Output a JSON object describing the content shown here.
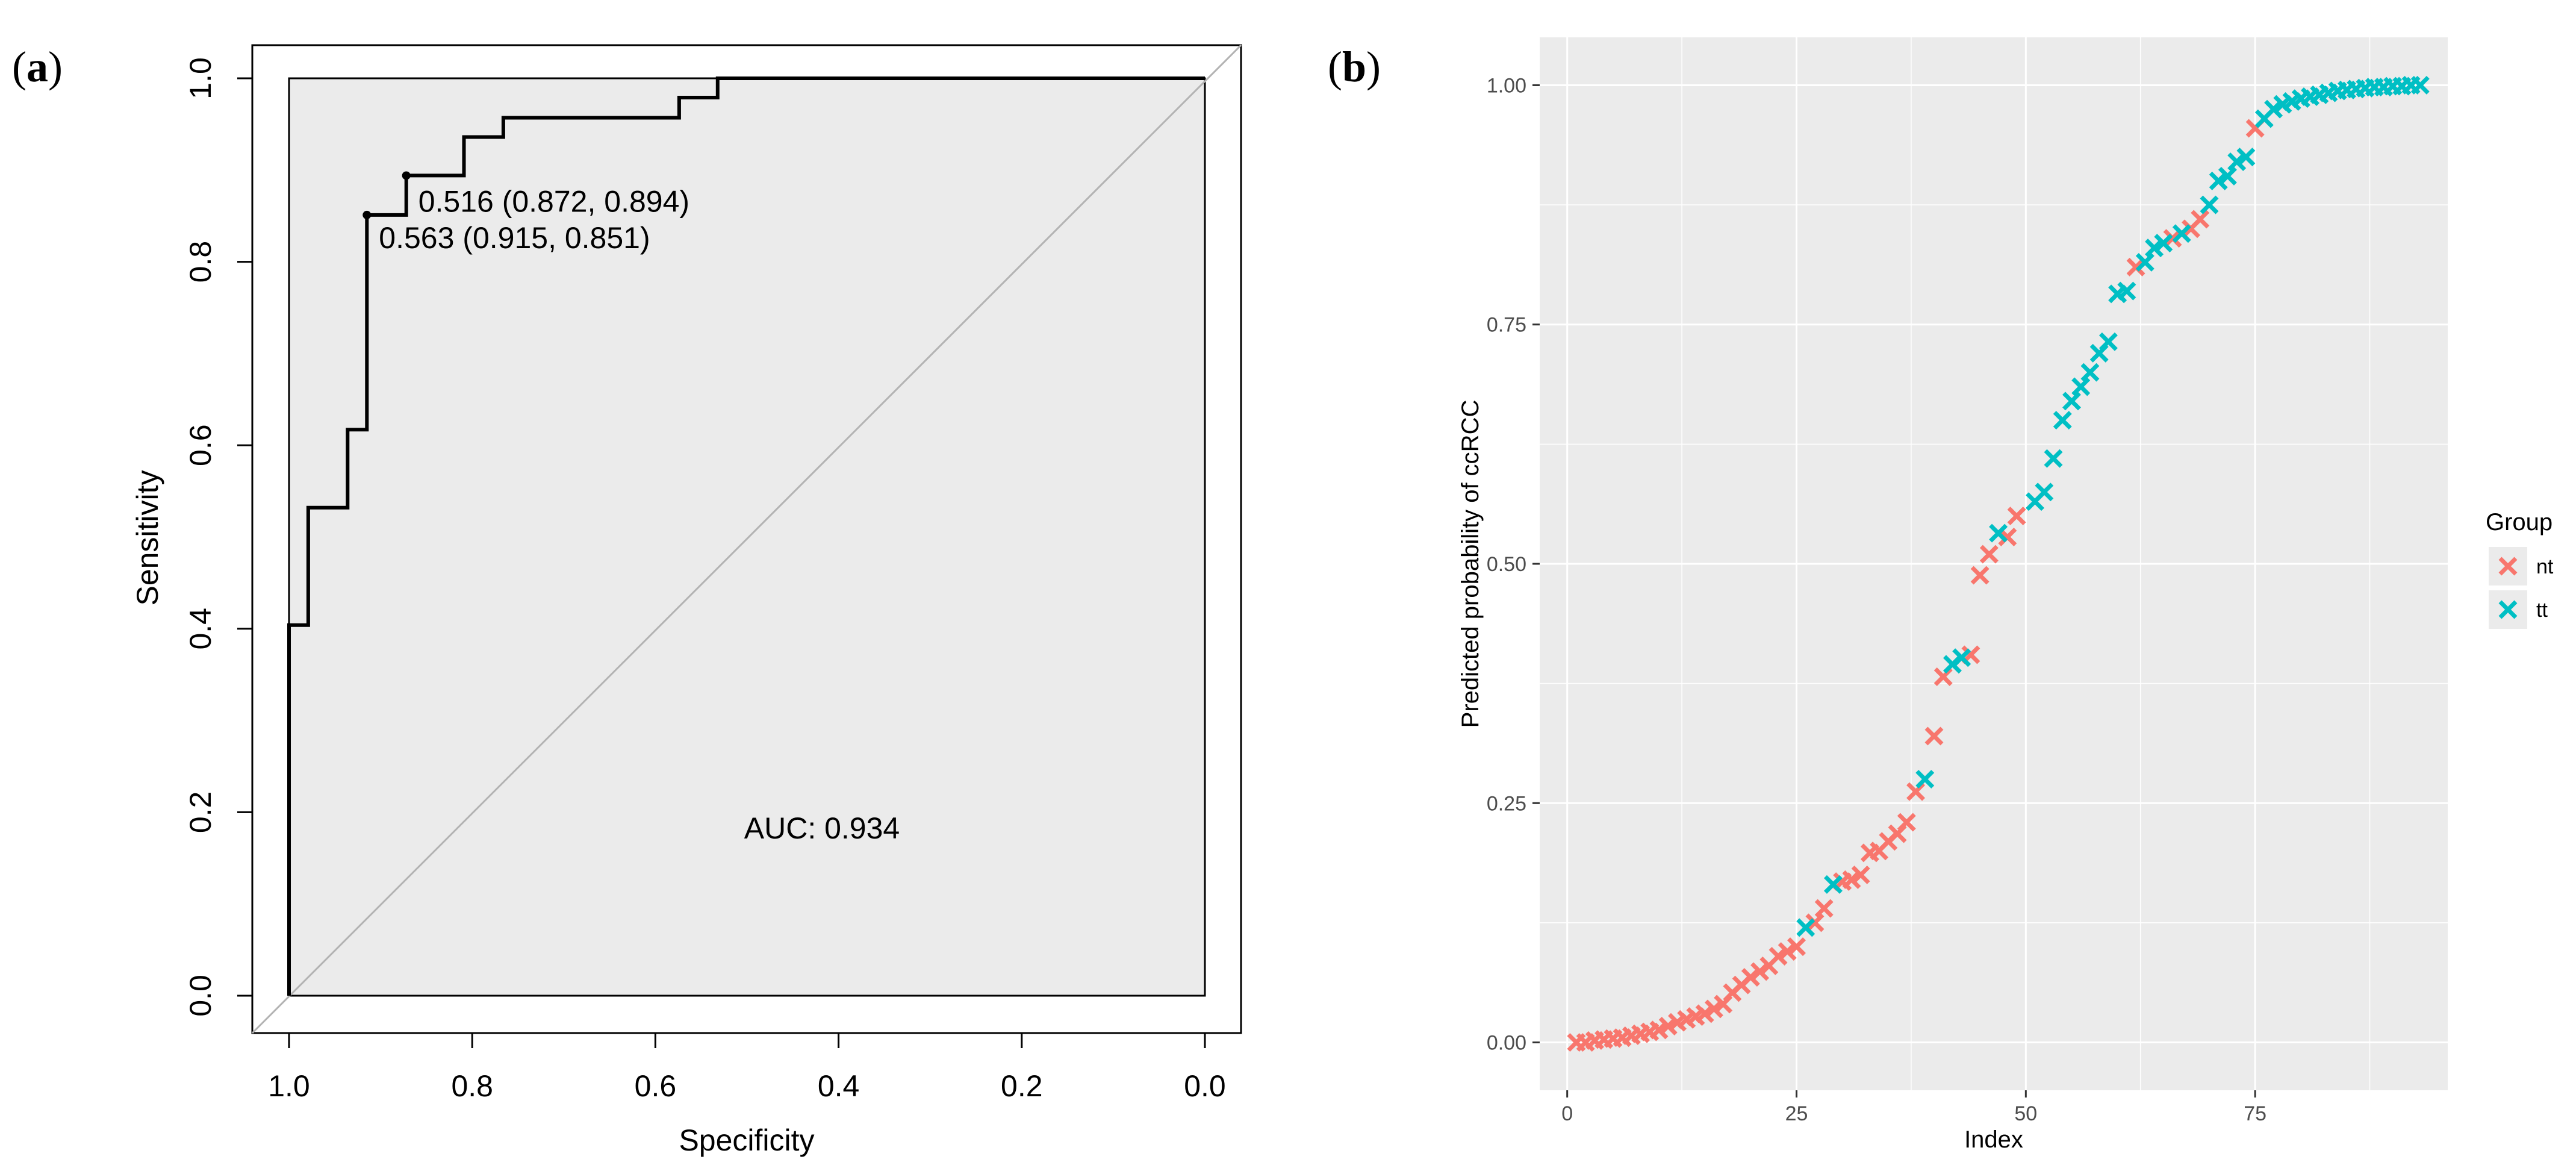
{
  "panel_labels": {
    "a": {
      "open": "(",
      "letter": "a",
      "close": ")"
    },
    "b": {
      "open": "(",
      "letter": "b",
      "close": ")"
    }
  },
  "chart_data": [
    {
      "type": "line",
      "chart": "roc",
      "xlabel": "Specificity",
      "ylabel": "Sensitivity",
      "xlim": [
        1.0,
        0.0
      ],
      "ylim": [
        0.0,
        1.0
      ],
      "x_ticks": [
        1.0,
        0.8,
        0.6,
        0.4,
        0.2,
        0.0
      ],
      "x_tick_labels": [
        "1.0",
        "0.8",
        "0.6",
        "0.4",
        "0.2",
        "0.0"
      ],
      "y_ticks": [
        0.0,
        0.2,
        0.4,
        0.6,
        0.8,
        1.0
      ],
      "y_tick_labels": [
        "0.0",
        "0.2",
        "0.4",
        "0.6",
        "0.8",
        "1.0"
      ],
      "curve": {
        "specificity": [
          1.0,
          1.0,
          0.979,
          0.979,
          0.936,
          0.936,
          0.915,
          0.915,
          0.872,
          0.872,
          0.809,
          0.809,
          0.766,
          0.766,
          0.574,
          0.574,
          0.532,
          0.532,
          0.0
        ],
        "sensitivity": [
          0.0,
          0.404,
          0.404,
          0.532,
          0.532,
          0.617,
          0.617,
          0.851,
          0.851,
          0.894,
          0.894,
          0.936,
          0.936,
          0.957,
          0.957,
          0.979,
          0.979,
          1.0,
          1.0
        ]
      },
      "diagonal": {
        "from": [
          1.0,
          0.0
        ],
        "to": [
          0.0,
          1.0
        ]
      },
      "threshold_points": [
        {
          "specificity": 0.872,
          "sensitivity": 0.894,
          "label": "0.516 (0.872, 0.894)"
        },
        {
          "specificity": 0.915,
          "sensitivity": 0.851,
          "label": "0.563 (0.915, 0.851)"
        }
      ],
      "auc_label": "AUC: 0.934",
      "colors": {
        "curve": "#000000",
        "diagonal": "#b3b3b3",
        "plot_bg": "#ebebeb"
      }
    },
    {
      "type": "scatter",
      "chart": "predicted-probability",
      "xlabel": "Index",
      "ylabel": "Predicted probability of ccRCC",
      "xlim": [
        -3,
        96
      ],
      "ylim": [
        -0.05,
        1.05
      ],
      "x_ticks": [
        0,
        25,
        50,
        75
      ],
      "x_tick_labels": [
        "0",
        "25",
        "50",
        "75"
      ],
      "y_ticks": [
        0.0,
        0.25,
        0.5,
        0.75,
        1.0
      ],
      "y_tick_labels": [
        "0.00",
        "0.25",
        "0.50",
        "0.75",
        "1.00"
      ],
      "legend": {
        "title": "Group",
        "position": "right",
        "entries": [
          {
            "name": "nt",
            "color": "#F8766D"
          },
          {
            "name": "tt",
            "color": "#00BFC4"
          }
        ]
      },
      "series": [
        {
          "name": "nt",
          "x": [
            1,
            2,
            3,
            4,
            5,
            6,
            7,
            8,
            9,
            10,
            11,
            12,
            13,
            14,
            15,
            16,
            17,
            18,
            19,
            20,
            21,
            22,
            23,
            24,
            25,
            27,
            28,
            30,
            31,
            32,
            33,
            34,
            35,
            36,
            37,
            38,
            40,
            41,
            44,
            45,
            46,
            48,
            49,
            62,
            66,
            68,
            69,
            75
          ],
          "y": [
            0.0,
            0.0,
            0.002,
            0.003,
            0.004,
            0.005,
            0.007,
            0.009,
            0.011,
            0.013,
            0.017,
            0.021,
            0.024,
            0.027,
            0.03,
            0.035,
            0.04,
            0.052,
            0.06,
            0.068,
            0.074,
            0.08,
            0.09,
            0.095,
            0.1,
            0.125,
            0.14,
            0.168,
            0.17,
            0.175,
            0.198,
            0.2,
            0.21,
            0.218,
            0.23,
            0.262,
            0.32,
            0.382,
            0.405,
            0.488,
            0.51,
            0.528,
            0.55,
            0.81,
            0.84,
            0.85,
            0.86,
            0.955
          ]
        },
        {
          "name": "tt",
          "x": [
            26,
            29,
            39,
            42,
            43,
            47,
            51,
            52,
            53,
            54,
            55,
            56,
            57,
            58,
            59,
            60,
            61,
            63,
            64,
            65,
            67,
            70,
            71,
            72,
            73,
            74,
            76,
            77,
            78,
            79,
            80,
            81,
            82,
            83,
            84,
            85,
            86,
            87,
            88,
            89,
            90,
            91,
            92,
            93
          ],
          "y": [
            0.12,
            0.165,
            0.275,
            0.395,
            0.402,
            0.532,
            0.565,
            0.575,
            0.61,
            0.65,
            0.67,
            0.685,
            0.7,
            0.72,
            0.732,
            0.782,
            0.785,
            0.815,
            0.83,
            0.835,
            0.845,
            0.875,
            0.9,
            0.905,
            0.92,
            0.925,
            0.965,
            0.975,
            0.98,
            0.983,
            0.986,
            0.988,
            0.99,
            0.992,
            0.994,
            0.995,
            0.996,
            0.997,
            0.998,
            0.998,
            0.999,
            0.999,
            1.0,
            1.0
          ]
        }
      ],
      "colors": {
        "panel_bg": "#ebebeb",
        "grid_major": "#ffffff"
      }
    }
  ]
}
